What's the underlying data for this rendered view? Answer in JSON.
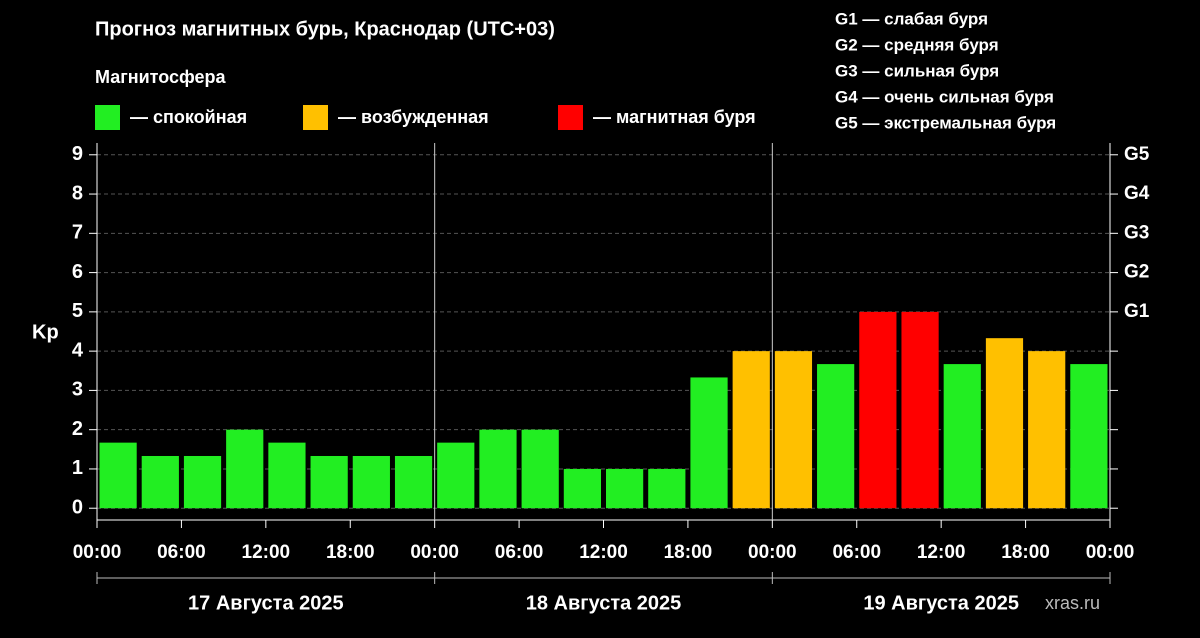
{
  "chart_data": {
    "type": "bar",
    "title": "Прогноз магнитных бурь, Краснодар (UTC+03)",
    "legend_title": "Магнитосфера",
    "legend": [
      {
        "label": "— спокойная",
        "color": "#22ee22"
      },
      {
        "label": "— возбужденная",
        "color": "#ffc000"
      },
      {
        "label": "— магнитная буря",
        "color": "#ff0000"
      }
    ],
    "scale_legend": [
      "G1 — слабая буря",
      "G2 — средняя буря",
      "G3 — сильная буря",
      "G4 — очень сильная буря",
      "G5 — экстремальная буря"
    ],
    "ylabel": "Kp",
    "x": [
      1.5,
      4.5,
      7.5,
      10.5,
      13.5,
      16.5,
      19.5,
      22.5,
      25.5,
      28.5,
      31.5,
      34.5,
      37.5,
      40.5,
      43.5,
      46.5,
      49.5,
      52.5,
      55.5,
      58.5,
      61.5,
      64.5,
      67.5,
      70.5
    ],
    "values": [
      1.67,
      1.33,
      1.33,
      2,
      1.67,
      1.33,
      1.33,
      1.33,
      1.67,
      2,
      2,
      1,
      1,
      1,
      3.33,
      4,
      4,
      3.67,
      5,
      5,
      3.67,
      4.33,
      4,
      3.67
    ],
    "colors": [
      "#22ee22",
      "#22ee22",
      "#22ee22",
      "#22ee22",
      "#22ee22",
      "#22ee22",
      "#22ee22",
      "#22ee22",
      "#22ee22",
      "#22ee22",
      "#22ee22",
      "#22ee22",
      "#22ee22",
      "#22ee22",
      "#22ee22",
      "#ffc000",
      "#ffc000",
      "#22ee22",
      "#ff0000",
      "#ff0000",
      "#22ee22",
      "#ffc000",
      "#ffc000",
      "#22ee22"
    ],
    "xlim": [
      0,
      72
    ],
    "xticks": [
      {
        "value": 0,
        "label": "00:00"
      },
      {
        "value": 6,
        "label": "06:00"
      },
      {
        "value": 12,
        "label": "12:00"
      },
      {
        "value": 18,
        "label": "18:00"
      },
      {
        "value": 24,
        "label": "00:00"
      },
      {
        "value": 30,
        "label": "06:00"
      },
      {
        "value": 36,
        "label": "12:00"
      },
      {
        "value": 42,
        "label": "18:00"
      },
      {
        "value": 48,
        "label": "00:00"
      },
      {
        "value": 54,
        "label": "06:00"
      },
      {
        "value": 60,
        "label": "12:00"
      },
      {
        "value": 66,
        "label": "18:00"
      },
      {
        "value": 72,
        "label": "00:00"
      }
    ],
    "days": [
      "17 Августа 2025",
      "18 Августа 2025",
      "19 Августа 2025"
    ],
    "ylim": [
      -0.3,
      9.3
    ],
    "yticks": [
      0,
      1,
      2,
      3,
      4,
      5,
      6,
      7,
      8,
      9
    ],
    "y2lim": [
      -0.3,
      9.3
    ],
    "y2ticks": [
      {
        "value": 5,
        "label": "G1"
      },
      {
        "value": 6,
        "label": "G2"
      },
      {
        "value": 7,
        "label": "G3"
      },
      {
        "value": 8,
        "label": "G4"
      },
      {
        "value": 9,
        "label": "G5"
      }
    ],
    "grid": true,
    "watermark": "xras.ru"
  }
}
